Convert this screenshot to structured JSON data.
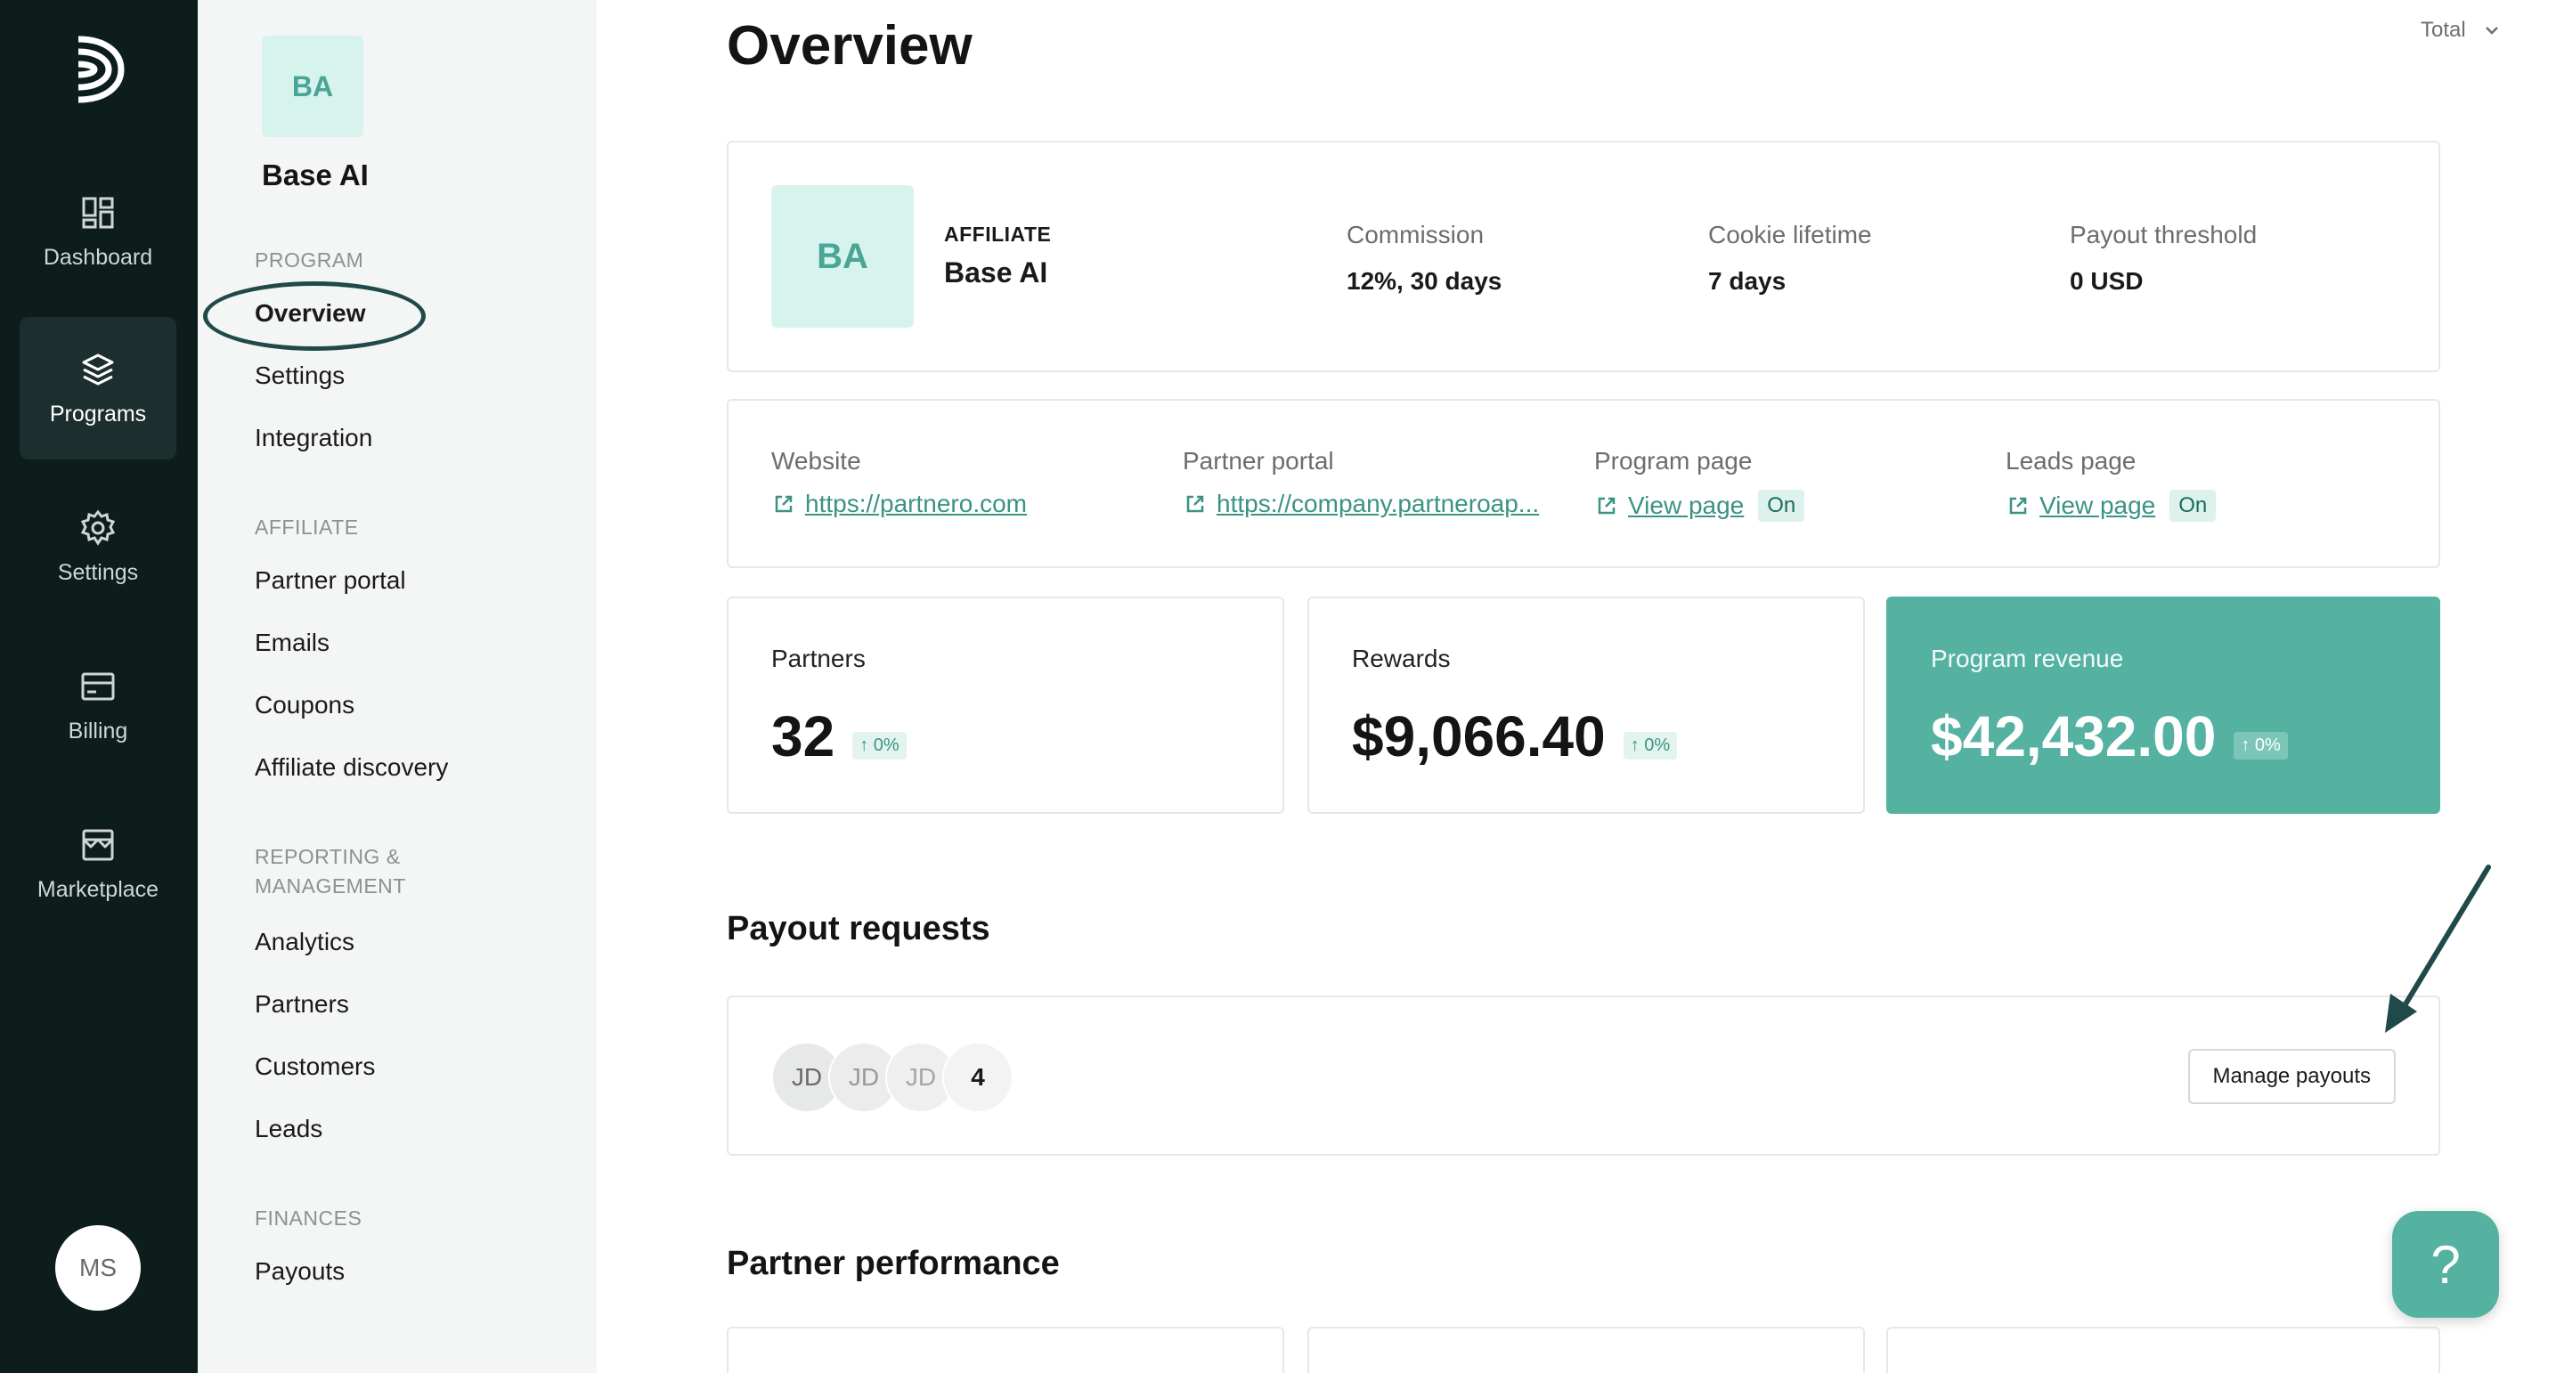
{
  "rail": {
    "items": [
      {
        "label": "Dashboard",
        "icon": "dashboard-icon"
      },
      {
        "label": "Programs",
        "icon": "layers-icon",
        "active": true
      },
      {
        "label": "Settings",
        "icon": "gear-icon"
      },
      {
        "label": "Billing",
        "icon": "billing-icon"
      },
      {
        "label": "Marketplace",
        "icon": "marketplace-icon"
      }
    ],
    "user_initials": "MS"
  },
  "subnav": {
    "program_initials": "BA",
    "program_name": "Base AI",
    "sections": {
      "program": "PROGRAM",
      "affiliate": "AFFILIATE",
      "reporting": "REPORTING &\nMANAGEMENT",
      "finances": "FINANCES"
    },
    "items": {
      "overview": "Overview",
      "settings": "Settings",
      "integration": "Integration",
      "partner_portal": "Partner portal",
      "emails": "Emails",
      "coupons": "Coupons",
      "affiliate_discovery": "Affiliate discovery",
      "analytics": "Analytics",
      "partners": "Partners",
      "customers": "Customers",
      "leads": "Leads",
      "payouts": "Payouts"
    }
  },
  "main": {
    "title": "Overview",
    "period_select": "Total",
    "info": {
      "initials": "BA",
      "type": "AFFILIATE",
      "name": "Base AI",
      "commission_label": "Commission",
      "commission_value": "12%, 30 days",
      "cookie_label": "Cookie lifetime",
      "cookie_value": "7 days",
      "threshold_label": "Payout threshold",
      "threshold_value": "0 USD"
    },
    "links": {
      "website_label": "Website",
      "website_url": "https://partnero.com",
      "portal_label": "Partner portal",
      "portal_url": "https://company.partneroap...",
      "program_page_label": "Program page",
      "program_page_link": "View page",
      "program_page_status": "On",
      "leads_page_label": "Leads page",
      "leads_page_link": "View page",
      "leads_page_status": "On"
    },
    "metrics": {
      "partners_label": "Partners",
      "partners_value": "32",
      "partners_change": "↑ 0%",
      "rewards_label": "Rewards",
      "rewards_value": "$9,066.40",
      "rewards_change": "↑ 0%",
      "revenue_label": "Program revenue",
      "revenue_value": "$42,432.00",
      "revenue_change": "↑ 0%"
    },
    "payouts": {
      "title": "Payout requests",
      "avatars": [
        "JD",
        "JD",
        "JD"
      ],
      "more_count": "4",
      "manage_button": "Manage payouts"
    },
    "performance": {
      "title": "Partner performance"
    },
    "help_button": "?"
  },
  "colors": {
    "rail_bg": "#0c1d1c",
    "accent": "#55b2a1",
    "link": "#3a9383",
    "annotation": "#1f4a49"
  }
}
